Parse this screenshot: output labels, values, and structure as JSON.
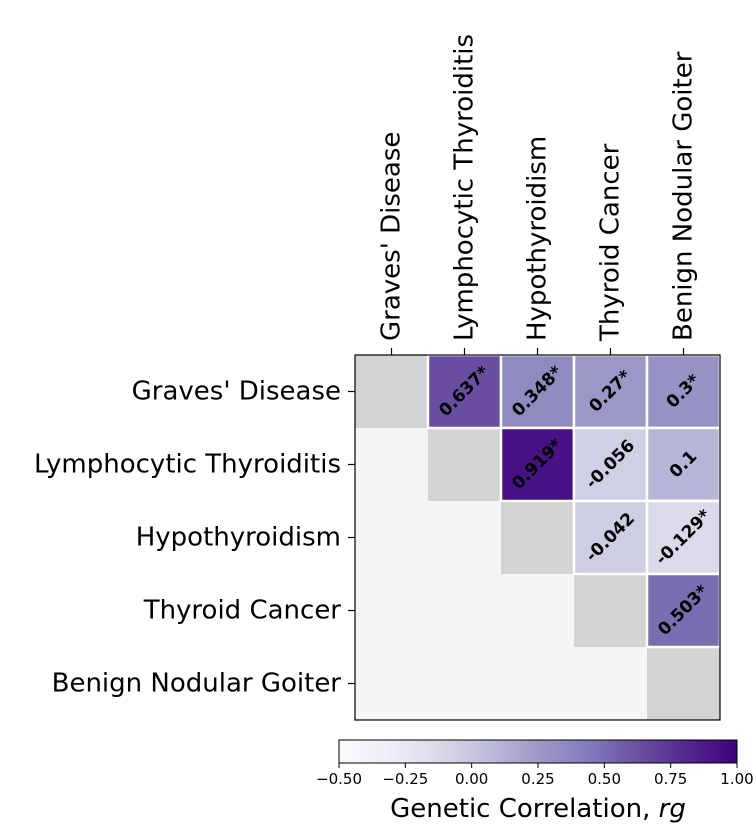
{
  "chart_data": {
    "type": "heatmap",
    "labels": [
      "Graves' Disease",
      "Lymphocytic Thyroiditis",
      "Hypothyroidism",
      "Thyroid Cancer",
      "Benign Nodular Goiter"
    ],
    "cells": [
      {
        "row": 0,
        "col": 1,
        "value": 0.637,
        "label": "0.637*"
      },
      {
        "row": 0,
        "col": 2,
        "value": 0.348,
        "label": "0.348*"
      },
      {
        "row": 0,
        "col": 3,
        "value": 0.27,
        "label": "0.27*"
      },
      {
        "row": 0,
        "col": 4,
        "value": 0.3,
        "label": "0.3*"
      },
      {
        "row": 1,
        "col": 2,
        "value": 0.919,
        "label": "0.919*"
      },
      {
        "row": 1,
        "col": 3,
        "value": -0.056,
        "label": "-0.056"
      },
      {
        "row": 1,
        "col": 4,
        "value": 0.1,
        "label": "0.1"
      },
      {
        "row": 2,
        "col": 3,
        "value": -0.042,
        "label": "-0.042"
      },
      {
        "row": 2,
        "col": 4,
        "value": -0.129,
        "label": "-0.129*"
      },
      {
        "row": 3,
        "col": 4,
        "value": 0.503,
        "label": "0.503*"
      }
    ],
    "colorbar": {
      "range": [
        -0.5,
        1.0
      ],
      "ticks": [
        "−0.50",
        "−0.25",
        "0.00",
        "0.25",
        "0.50",
        "0.75",
        "1.00"
      ],
      "label_prefix": "Genetic Correlation, ",
      "label_var": "rg",
      "colormap": "Purples"
    },
    "colors": {
      "diagonal": "#d3d3d3",
      "lower_triangle": "#f5f5f5",
      "cell_border": "#ffffff"
    }
  }
}
